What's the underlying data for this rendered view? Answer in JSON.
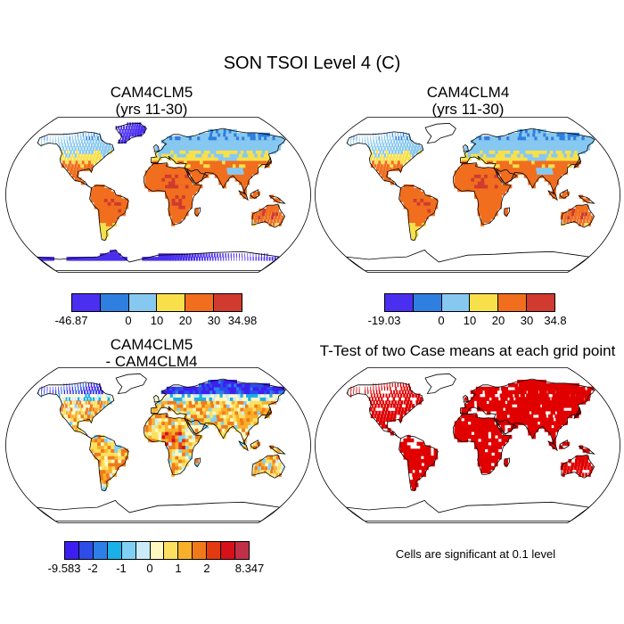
{
  "figure": {
    "title": "SON TSOI Level 4 (C)",
    "note": "Cells are significant at 0.1 level"
  },
  "panels": [
    {
      "id": "cam4clm5",
      "title_line1": "CAM4CLM5",
      "title_line2": "(yrs 11-30)",
      "colors": {
        "ocean": "#ffffff",
        "land_colors": [
          "#4b2ff0",
          "#2f7fe0",
          "#87c8f0",
          "#f8e04b",
          "#f06e1e",
          "#d03a2f"
        ]
      },
      "legend": {
        "colors": [
          "#4b2ff0",
          "#2f7fe0",
          "#87c8f0",
          "#f8e04b",
          "#f06e1e",
          "#d03a2f"
        ],
        "labels": [
          "-46.87",
          "0",
          "10",
          "20",
          "30",
          "34.98"
        ]
      }
    },
    {
      "id": "cam4clm4",
      "title_line1": "CAM4CLM4",
      "title_line2": "(yrs 11-30)",
      "legend": {
        "colors": [
          "#4b2ff0",
          "#2f7fe0",
          "#87c8f0",
          "#f8e04b",
          "#f06e1e",
          "#d03a2f"
        ],
        "labels": [
          "-19.03",
          "0",
          "10",
          "20",
          "30",
          "34.8"
        ]
      }
    },
    {
      "id": "difference",
      "title_line1": "CAM4CLM5",
      "title_line2": "- CAM4CLM4",
      "legend": {
        "colors": [
          "#3c1ff0",
          "#2e4ce8",
          "#2e7ee8",
          "#1ab0e8",
          "#7fd0f5",
          "#c9ecf8",
          "#fff9c0",
          "#fde060",
          "#f8b02a",
          "#f07a1a",
          "#e33a12",
          "#d8101a",
          "#c03048"
        ],
        "labels": [
          "-9.583",
          "-2",
          "-1",
          "0",
          "1",
          "2",
          "8.347"
        ]
      }
    },
    {
      "id": "ttest",
      "title_line1": "T-Test of two Case means at each grid point",
      "colors": {
        "significant": "#e00000"
      }
    }
  ]
}
